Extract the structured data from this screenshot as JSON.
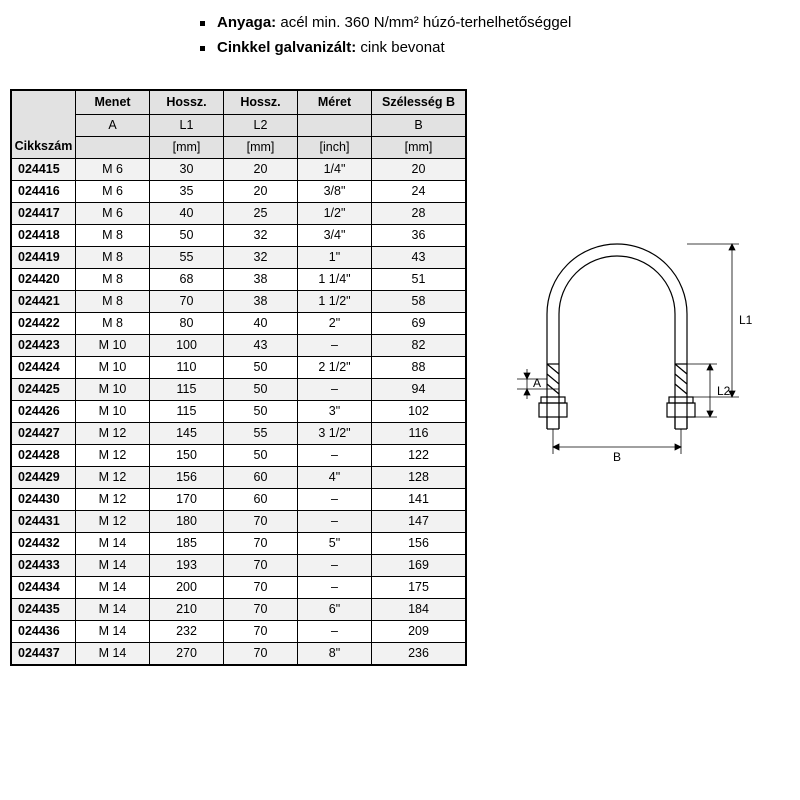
{
  "bullets": [
    {
      "label": "Anyaga:",
      "text": " acél min. 360 N/mm² húzó-terhelhetőséggel"
    },
    {
      "label": "Cinkkel galvanizált:",
      "text": " cink bevonat"
    }
  ],
  "table": {
    "corner": "Cikkszám",
    "headers": [
      {
        "title": "Menet",
        "sub": "A",
        "unit": ""
      },
      {
        "title": "Hossz.",
        "sub": "L1",
        "unit": "[mm]"
      },
      {
        "title": "Hossz.",
        "sub": "L2",
        "unit": "[mm]"
      },
      {
        "title": "Méret",
        "sub": "",
        "unit": "[inch]"
      },
      {
        "title": "Szélesség B",
        "sub": "B",
        "unit": "[mm]"
      }
    ],
    "rows": [
      [
        "024415",
        "M 6",
        "30",
        "20",
        "1/4\"",
        "20"
      ],
      [
        "024416",
        "M 6",
        "35",
        "20",
        "3/8\"",
        "24"
      ],
      [
        "024417",
        "M 6",
        "40",
        "25",
        "1/2\"",
        "28"
      ],
      [
        "024418",
        "M 8",
        "50",
        "32",
        "3/4\"",
        "36"
      ],
      [
        "024419",
        "M 8",
        "55",
        "32",
        "1\"",
        "43"
      ],
      [
        "024420",
        "M 8",
        "68",
        "38",
        "1 1/4\"",
        "51"
      ],
      [
        "024421",
        "M 8",
        "70",
        "38",
        "1 1/2\"",
        "58"
      ],
      [
        "024422",
        "M 8",
        "80",
        "40",
        "2\"",
        "69"
      ],
      [
        "024423",
        "M 10",
        "100",
        "43",
        "–",
        "82"
      ],
      [
        "024424",
        "M 10",
        "110",
        "50",
        "2 1/2\"",
        "88"
      ],
      [
        "024425",
        "M 10",
        "115",
        "50",
        "–",
        "94"
      ],
      [
        "024426",
        "M 10",
        "115",
        "50",
        "3\"",
        "102"
      ],
      [
        "024427",
        "M 12",
        "145",
        "55",
        "3 1/2\"",
        "116"
      ],
      [
        "024428",
        "M 12",
        "150",
        "50",
        "–",
        "122"
      ],
      [
        "024429",
        "M 12",
        "156",
        "60",
        "4\"",
        "128"
      ],
      [
        "024430",
        "M 12",
        "170",
        "60",
        "–",
        "141"
      ],
      [
        "024431",
        "M 12",
        "180",
        "70",
        "–",
        "147"
      ],
      [
        "024432",
        "M 14",
        "185",
        "70",
        "5\"",
        "156"
      ],
      [
        "024433",
        "M 14",
        "193",
        "70",
        "–",
        "169"
      ],
      [
        "024434",
        "M 14",
        "200",
        "70",
        "–",
        "175"
      ],
      [
        "024435",
        "M 14",
        "210",
        "70",
        "6\"",
        "184"
      ],
      [
        "024436",
        "M 14",
        "232",
        "70",
        "–",
        "209"
      ],
      [
        "024437",
        "M 14",
        "270",
        "70",
        "8\"",
        "236"
      ]
    ]
  },
  "diagram": {
    "labels": {
      "A": "A",
      "B": "B",
      "L1": "L1",
      "L2": "L2"
    },
    "stroke": "#000000",
    "thin": "#000000"
  }
}
